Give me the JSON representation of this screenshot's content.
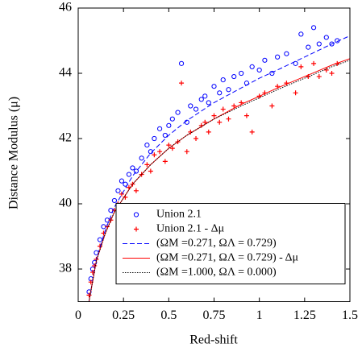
{
  "chart_data": {
    "type": "scatter",
    "xlabel": "Red-shift",
    "ylabel": "Distance Modulus (μ)",
    "xlim": [
      0,
      1.5
    ],
    "ylim": [
      37,
      46
    ],
    "xticks": [
      0,
      0.25,
      0.5,
      0.75,
      1,
      1.25,
      1.5
    ],
    "yticks": [
      38,
      40,
      42,
      44,
      46
    ],
    "legend": "lower right",
    "series": [
      {
        "name": "Union 2.1",
        "color": "#0000ff",
        "marker": "circle",
        "x": [
          0.05,
          0.06,
          0.07,
          0.08,
          0.09,
          0.1,
          0.12,
          0.14,
          0.16,
          0.18,
          0.2,
          0.22,
          0.24,
          0.26,
          0.28,
          0.3,
          0.32,
          0.35,
          0.38,
          0.4,
          0.42,
          0.45,
          0.48,
          0.5,
          0.52,
          0.55,
          0.57,
          0.6,
          0.62,
          0.65,
          0.68,
          0.7,
          0.72,
          0.75,
          0.78,
          0.8,
          0.83,
          0.86,
          0.9,
          0.93,
          0.96,
          1.0,
          1.03,
          1.07,
          1.1,
          1.15,
          1.2,
          1.23,
          1.27,
          1.3,
          1.33,
          1.37,
          1.4,
          1.43
        ],
        "values": [
          36.9,
          37.3,
          37.7,
          38.0,
          38.2,
          38.5,
          38.9,
          39.3,
          39.5,
          39.8,
          40.1,
          40.4,
          40.7,
          40.6,
          40.9,
          41.1,
          41.0,
          41.4,
          41.8,
          41.6,
          42.0,
          42.3,
          42.1,
          42.4,
          42.6,
          42.8,
          44.3,
          42.5,
          43.0,
          42.9,
          43.2,
          43.3,
          43.1,
          43.6,
          43.4,
          43.8,
          43.5,
          43.9,
          44.0,
          43.7,
          44.2,
          44.1,
          44.4,
          44.0,
          44.5,
          44.6,
          44.3,
          45.2,
          44.8,
          45.4,
          44.9,
          45.1,
          44.9,
          45.0
        ]
      },
      {
        "name": "Union 2.1 - Δμ",
        "color": "#ff0000",
        "marker": "plus",
        "x": [
          0.05,
          0.06,
          0.07,
          0.08,
          0.09,
          0.1,
          0.12,
          0.14,
          0.16,
          0.18,
          0.2,
          0.22,
          0.24,
          0.26,
          0.28,
          0.3,
          0.32,
          0.35,
          0.38,
          0.4,
          0.42,
          0.45,
          0.48,
          0.5,
          0.52,
          0.55,
          0.57,
          0.6,
          0.62,
          0.65,
          0.68,
          0.7,
          0.72,
          0.75,
          0.78,
          0.8,
          0.83,
          0.86,
          0.9,
          0.93,
          0.96,
          1.0,
          1.03,
          1.07,
          1.1,
          1.15,
          1.2,
          1.23,
          1.27,
          1.3,
          1.33,
          1.37,
          1.4,
          1.43
        ],
        "values": [
          36.8,
          37.2,
          37.6,
          37.9,
          38.1,
          38.3,
          38.7,
          39.1,
          39.3,
          39.5,
          39.8,
          40.0,
          40.3,
          40.2,
          40.5,
          40.6,
          40.4,
          40.9,
          41.2,
          41.0,
          41.5,
          41.6,
          41.3,
          41.8,
          41.7,
          41.9,
          43.7,
          41.6,
          42.2,
          42.0,
          42.4,
          42.5,
          42.2,
          42.7,
          42.5,
          42.9,
          42.6,
          43.0,
          43.1,
          42.7,
          42.2,
          43.3,
          43.4,
          43.0,
          43.6,
          43.7,
          43.4,
          44.2,
          43.9,
          44.3,
          43.9,
          44.1,
          44.0,
          44.3
        ]
      },
      {
        "name": "(ΩM =0.271, ΩΛ = 0.729)",
        "color": "#0000ff",
        "line": "dashed",
        "x": [
          0.05,
          0.1,
          0.15,
          0.2,
          0.3,
          0.4,
          0.5,
          0.6,
          0.75,
          0.9,
          1.0,
          1.1,
          1.25,
          1.4,
          1.5
        ],
        "values": [
          36.7,
          38.3,
          39.2,
          39.9,
          40.85,
          41.55,
          42.1,
          42.55,
          43.1,
          43.55,
          43.85,
          44.1,
          44.5,
          44.9,
          45.15
        ]
      },
      {
        "name": "(ΩM =0.271, ΩΛ = 0.729) - Δμ",
        "color": "#ff0000",
        "line": "solid",
        "x": [
          0.05,
          0.1,
          0.15,
          0.2,
          0.3,
          0.4,
          0.5,
          0.6,
          0.75,
          0.9,
          1.0,
          1.1,
          1.25,
          1.4,
          1.5
        ],
        "values": [
          36.7,
          38.25,
          39.1,
          39.75,
          40.6,
          41.2,
          41.7,
          42.1,
          42.6,
          43.05,
          43.3,
          43.55,
          43.9,
          44.25,
          44.45
        ]
      },
      {
        "name": "(ΩM =1.000, ΩΛ = 0.000)",
        "color": "#000000",
        "line": "dotted",
        "x": [
          0.05,
          0.1,
          0.15,
          0.2,
          0.3,
          0.4,
          0.5,
          0.6,
          0.75,
          0.9,
          1.0,
          1.1,
          1.25,
          1.4,
          1.5
        ],
        "values": [
          36.7,
          38.25,
          39.1,
          39.75,
          40.6,
          41.2,
          41.7,
          42.1,
          42.6,
          43.0,
          43.25,
          43.5,
          43.85,
          44.2,
          44.4
        ]
      }
    ]
  }
}
